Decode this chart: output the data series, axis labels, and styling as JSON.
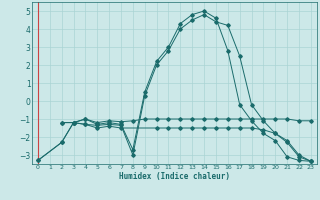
{
  "title": "",
  "xlabel": "Humidex (Indice chaleur)",
  "bg_color": "#cce8e8",
  "grid_color": "#aad4d4",
  "line_color": "#1a6b6b",
  "red_line_color": "#cc4444",
  "xlim": [
    -0.5,
    23.5
  ],
  "ylim": [
    -3.5,
    5.5
  ],
  "yticks": [
    -3,
    -2,
    -1,
    0,
    1,
    2,
    3,
    4,
    5
  ],
  "xticks": [
    0,
    1,
    2,
    3,
    4,
    5,
    6,
    7,
    8,
    9,
    10,
    11,
    12,
    13,
    14,
    15,
    16,
    17,
    18,
    19,
    20,
    21,
    22,
    23
  ],
  "series": [
    {
      "x": [
        0,
        2,
        3,
        4,
        5,
        6,
        7,
        8,
        9,
        10,
        11,
        12,
        13,
        14,
        15,
        16,
        17,
        18,
        19,
        20,
        21,
        22,
        23
      ],
      "y": [
        -3.3,
        -2.3,
        -1.2,
        -1.0,
        -1.3,
        -1.2,
        -1.3,
        -2.7,
        0.5,
        2.2,
        3.0,
        4.3,
        4.8,
        5.0,
        4.6,
        2.8,
        -0.2,
        -1.1,
        -1.8,
        -2.2,
        -3.1,
        -3.3,
        -3.35
      ]
    },
    {
      "x": [
        2,
        3,
        4,
        5,
        6,
        7,
        8,
        9,
        10,
        11,
        12,
        13,
        14,
        15,
        16,
        17,
        18,
        19,
        20,
        21,
        22,
        23
      ],
      "y": [
        -1.2,
        -1.2,
        -1.0,
        -1.2,
        -1.1,
        -1.15,
        -1.1,
        -1.0,
        -1.0,
        -1.0,
        -1.0,
        -1.0,
        -1.0,
        -1.0,
        -1.0,
        -1.0,
        -1.0,
        -1.0,
        -1.0,
        -1.0,
        -1.1,
        -1.1
      ]
    },
    {
      "x": [
        2,
        3,
        4,
        5,
        6,
        7,
        8,
        9,
        10,
        11,
        12,
        13,
        14,
        15,
        16,
        17,
        18,
        19,
        20,
        21,
        22,
        23
      ],
      "y": [
        -1.2,
        -1.2,
        -1.3,
        -1.35,
        -1.3,
        -1.35,
        -3.0,
        0.3,
        2.0,
        2.8,
        4.0,
        4.5,
        4.8,
        4.4,
        4.2,
        2.5,
        -0.2,
        -1.1,
        -1.8,
        -2.3,
        -3.1,
        -3.35
      ]
    },
    {
      "x": [
        0,
        2,
        3,
        4,
        5,
        6,
        7,
        10,
        11,
        12,
        13,
        14,
        15,
        16,
        17,
        18,
        19,
        20,
        21,
        22,
        23
      ],
      "y": [
        -3.3,
        -2.3,
        -1.2,
        -1.3,
        -1.5,
        -1.4,
        -1.5,
        -1.5,
        -1.5,
        -1.5,
        -1.5,
        -1.5,
        -1.5,
        -1.5,
        -1.5,
        -1.5,
        -1.6,
        -1.8,
        -2.2,
        -3.0,
        -3.35
      ]
    }
  ]
}
